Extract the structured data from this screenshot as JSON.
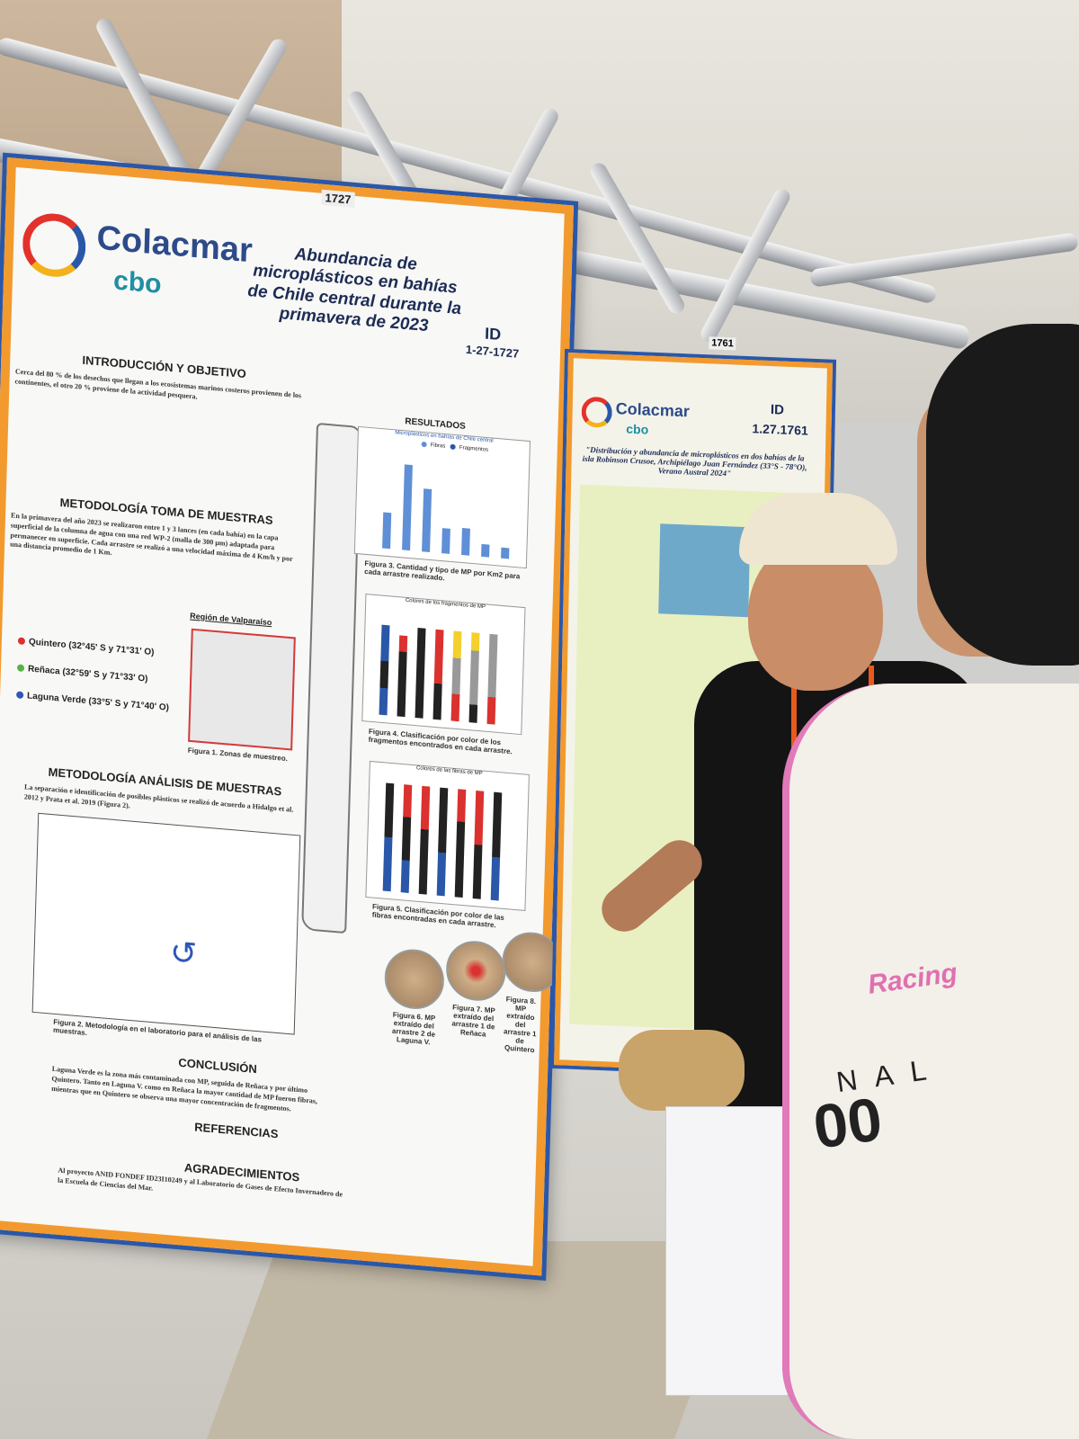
{
  "booth_numbers": {
    "main": "1727",
    "neighbor": "1761"
  },
  "main_poster": {
    "logo": {
      "name": "Colacmar",
      "sub": "cbo"
    },
    "title": "Abundancia de microplásticos en bahías de Chile central durante la primavera de 2023",
    "id_label": "ID",
    "id_value": "1-27-1727",
    "sections": {
      "intro": "INTRODUCCIÓN Y OBJETIVO",
      "method_sampling": "METODOLOGÍA TOMA DE MUESTRAS",
      "method_analysis": "METODOLOGÍA ANÁLISIS DE MUESTRAS",
      "results": "RESULTADOS",
      "conclusion": "CONCLUSIÓN",
      "references": "REFERENCIAS",
      "acknowledgements": "AGRADECIMIENTOS"
    },
    "map_region_label": "Región de Valparaíso",
    "sites": [
      {
        "name": "Quintero (32°45' S y 71°31' O)",
        "color": "#d9322f"
      },
      {
        "name": "Reñaca (32°59' S y 71°33' O)",
        "color": "#58b247"
      },
      {
        "name": "Laguna Verde (33°5' S y 71°40' O)",
        "color": "#2f56b8"
      }
    ],
    "intro_text": "Cerca del 80 % de los desechos que llegan a los ecosistemas marinos costeros provienen de los continentes, el otro 20 % proviene de la actividad pesquera.",
    "sampling_text": "En la primavera del año 2023 se realizaron entre 1 y 3 lances (en cada bahía) en la capa superficial de la columna de agua con una red WP-2 (malla de 300 µm) adaptada para permanecer en superficie. Cada arrastre se realizó a una velocidad máxima de 4 Km/h y por una distancia promedio de 1 Km.",
    "analysis_text": "La separación e identificación de posibles plásticos se realizó de acuerdo a Hidalgo et al. 2012 y Prata et al. 2019 (Figura 2).",
    "conclusion_text": "Laguna Verde es la zona más contaminada con MP, seguida de Reñaca y por último Quintero. Tanto en Laguna V. como en Reñaca la mayor cantidad de MP fueron fibras, mientras que en Quintero se observa una mayor concentración de fragmentos.",
    "chart_titles": {
      "c1": "Microplásticos en bahías de Chile central",
      "c2": "Colores de los fragmentos de MP",
      "c3": "Colores de las fibras de MP"
    },
    "legend": {
      "a": "Fibras",
      "b": "Fragmentos"
    },
    "figure_captions": {
      "f1": "Figura 1. Zonas de muestreo.",
      "f2": "Figura 2. Metodología en el laboratorio para el análisis de las muestras.",
      "f3": "Figura 3. Cantidad y tipo de MP por Km2 para cada arrastre realizado.",
      "f4": "Figura 4. Clasificación por color de los fragmentos encontrados en cada arrastre.",
      "f5": "Figura 5. Clasificación por color de las fibras encontradas en cada arrastre.",
      "f6": "Figura 6. MP extraído del arrastre 2 de Laguna V.",
      "f7": "Figura 7. MP extraído del arrastre 1 de Reñaca",
      "f8": "Figura 8. MP extraído del arrastre 1 de Quintero"
    },
    "acknowledgements_text": "Al proyecto ANID FONDEF ID23I10249 y al Laboratorio de Gases de Efecto Invernadero de la Escuela de Ciencias del Mar."
  },
  "neighbor_poster": {
    "logo": {
      "name": "Colacmar",
      "sub": "cbo"
    },
    "id_label": "ID",
    "id_value": "1.27.1761",
    "title": "\"Distribución y abundancia de microplásticos en dos bahías de la isla Robinson Crusoe, Archipiélago Juan Fernández (33°S - 78°O), Verano Austral 2024\""
  },
  "apparel": {
    "jacket_word": "Racing",
    "jacket_letters": "N A L",
    "jacket_number": "00"
  },
  "colors": {
    "poster_border": "#f29a2e",
    "poster_frame": "#2a57a8",
    "lanyard": "#e85a1b"
  }
}
